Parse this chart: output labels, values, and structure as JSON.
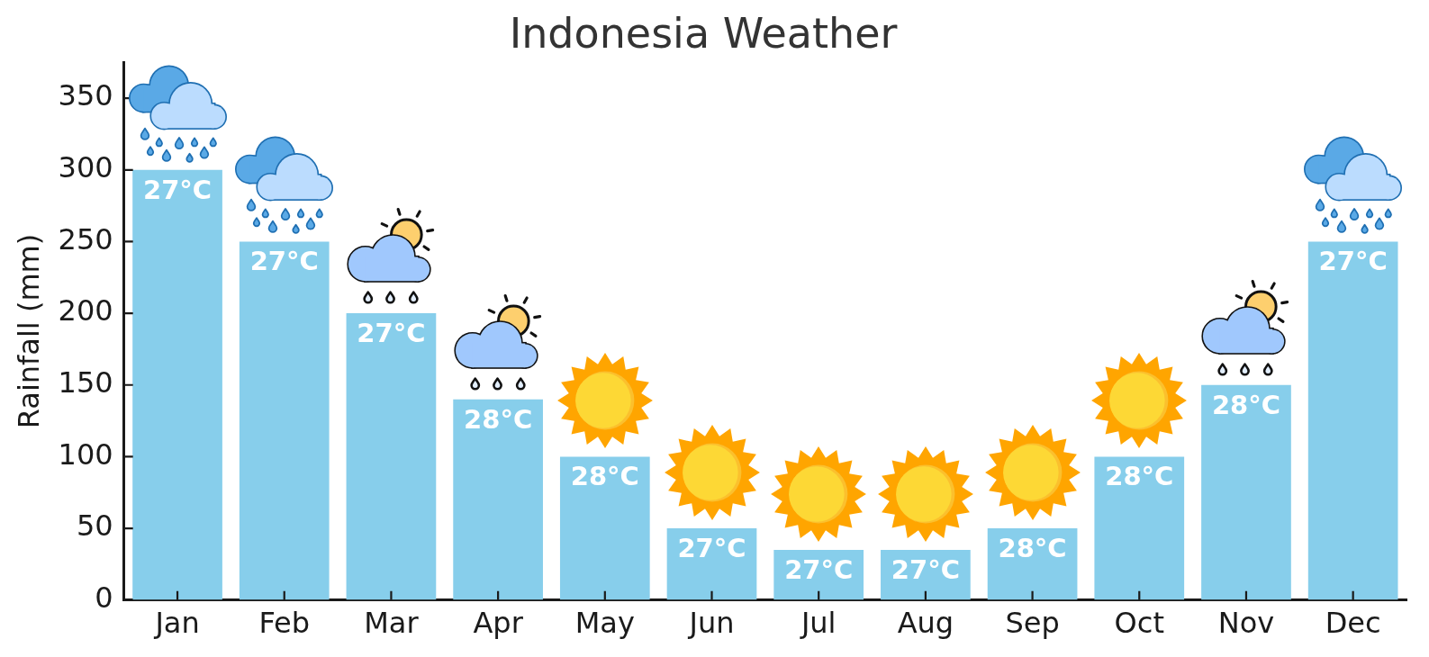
{
  "chart_data": {
    "type": "bar",
    "title": "Indonesia Weather",
    "ylabel": "Rainfall (mm)",
    "categories": [
      "Jan",
      "Feb",
      "Mar",
      "Apr",
      "May",
      "Jun",
      "Jul",
      "Aug",
      "Sep",
      "Oct",
      "Nov",
      "Dec"
    ],
    "values": [
      300,
      250,
      200,
      140,
      100,
      50,
      35,
      35,
      50,
      100,
      150,
      250
    ],
    "color": "#87ceeb",
    "annotations": [
      {
        "text": "27°C",
        "x": "Jan",
        "y": 300
      },
      {
        "text": "27°C",
        "x": "Feb",
        "y": 250
      },
      {
        "text": "27°C",
        "x": "Mar",
        "y": 200
      },
      {
        "text": "28°C",
        "x": "Apr",
        "y": 140
      },
      {
        "text": "28°C",
        "x": "May",
        "y": 100
      },
      {
        "text": "27°C",
        "x": "Jun",
        "y": 50
      },
      {
        "text": "27°C",
        "x": "Jul",
        "y": 35
      },
      {
        "text": "27°C",
        "x": "Aug",
        "y": 35
      },
      {
        "text": "28°C",
        "x": "Sep",
        "y": 50
      },
      {
        "text": "28°C",
        "x": "Oct",
        "y": 100
      },
      {
        "text": "28°C",
        "x": "Nov",
        "y": 150
      },
      {
        "text": "27°C",
        "x": "Dec",
        "y": 250
      }
    ],
    "ylim": [
      0,
      375
    ],
    "yticks": [
      0,
      50,
      100,
      150,
      200,
      250,
      300,
      350
    ]
  }
}
